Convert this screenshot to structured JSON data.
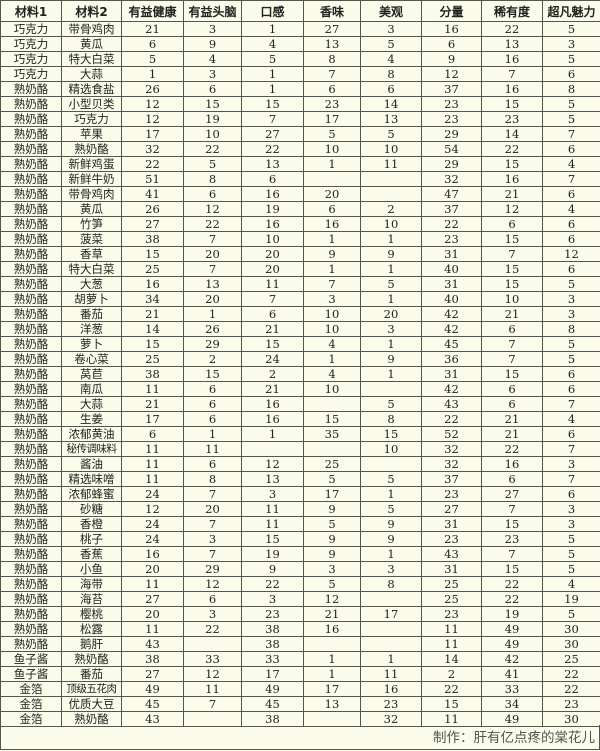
{
  "headers": [
    "材料1",
    "材料2",
    "有益健康",
    "有益头脑",
    "口感",
    "香味",
    "美观",
    "分量",
    "稀有度",
    "超凡魅力"
  ],
  "rows": [
    [
      "巧克力",
      "带骨鸡肉",
      "21",
      "3",
      "1",
      "27",
      "3",
      "16",
      "22",
      "5"
    ],
    [
      "巧克力",
      "黄瓜",
      "6",
      "9",
      "4",
      "13",
      "5",
      "6",
      "13",
      "3"
    ],
    [
      "巧克力",
      "特大白菜",
      "5",
      "4",
      "5",
      "8",
      "4",
      "9",
      "16",
      "5"
    ],
    [
      "巧克力",
      "大蒜",
      "1",
      "3",
      "1",
      "7",
      "8",
      "12",
      "7",
      "6"
    ],
    [
      "熟奶酪",
      "精选食盐",
      "26",
      "6",
      "1",
      "6",
      "6",
      "37",
      "16",
      "8"
    ],
    [
      "熟奶酪",
      "小型贝类",
      "12",
      "15",
      "15",
      "23",
      "14",
      "23",
      "15",
      "5"
    ],
    [
      "熟奶酪",
      "巧克力",
      "12",
      "19",
      "7",
      "17",
      "13",
      "23",
      "23",
      "5"
    ],
    [
      "熟奶酪",
      "苹果",
      "17",
      "10",
      "27",
      "5",
      "5",
      "29",
      "14",
      "7"
    ],
    [
      "熟奶酪",
      "熟奶酪",
      "32",
      "22",
      "22",
      "10",
      "10",
      "54",
      "22",
      "6"
    ],
    [
      "熟奶酪",
      "新鲜鸡蛋",
      "22",
      "5",
      "13",
      "1",
      "11",
      "29",
      "15",
      "4"
    ],
    [
      "熟奶酪",
      "新鲜牛奶",
      "51",
      "8",
      "6",
      "",
      "",
      "32",
      "16",
      "7"
    ],
    [
      "熟奶酪",
      "带骨鸡肉",
      "41",
      "6",
      "16",
      "20",
      "",
      "47",
      "21",
      "6"
    ],
    [
      "熟奶酪",
      "黄瓜",
      "26",
      "12",
      "19",
      "6",
      "2",
      "37",
      "12",
      "4"
    ],
    [
      "熟奶酪",
      "竹笋",
      "27",
      "22",
      "16",
      "16",
      "10",
      "22",
      "6",
      "6"
    ],
    [
      "熟奶酪",
      "菠菜",
      "38",
      "7",
      "10",
      "1",
      "1",
      "23",
      "15",
      "6"
    ],
    [
      "熟奶酪",
      "香草",
      "15",
      "20",
      "20",
      "9",
      "9",
      "31",
      "7",
      "12"
    ],
    [
      "熟奶酪",
      "特大白菜",
      "25",
      "7",
      "20",
      "1",
      "1",
      "40",
      "15",
      "6"
    ],
    [
      "熟奶酪",
      "大葱",
      "16",
      "13",
      "11",
      "7",
      "5",
      "31",
      "15",
      "5"
    ],
    [
      "熟奶酪",
      "胡萝卜",
      "34",
      "20",
      "7",
      "3",
      "1",
      "40",
      "10",
      "3"
    ],
    [
      "熟奶酪",
      "番茄",
      "21",
      "1",
      "6",
      "10",
      "20",
      "42",
      "21",
      "3"
    ],
    [
      "熟奶酪",
      "洋葱",
      "14",
      "26",
      "21",
      "10",
      "3",
      "42",
      "6",
      "8"
    ],
    [
      "熟奶酪",
      "萝卜",
      "15",
      "29",
      "15",
      "4",
      "1",
      "45",
      "7",
      "5"
    ],
    [
      "熟奶酪",
      "卷心菜",
      "25",
      "2",
      "24",
      "1",
      "9",
      "36",
      "7",
      "5"
    ],
    [
      "熟奶酪",
      "莴苣",
      "38",
      "15",
      "2",
      "4",
      "1",
      "31",
      "15",
      "6"
    ],
    [
      "熟奶酪",
      "南瓜",
      "11",
      "6",
      "21",
      "10",
      "",
      "42",
      "6",
      "6"
    ],
    [
      "熟奶酪",
      "大蒜",
      "21",
      "6",
      "16",
      "",
      "5",
      "43",
      "6",
      "7"
    ],
    [
      "熟奶酪",
      "生姜",
      "17",
      "6",
      "16",
      "15",
      "8",
      "22",
      "21",
      "4"
    ],
    [
      "熟奶酪",
      "浓郁黄油",
      "6",
      "1",
      "1",
      "35",
      "15",
      "52",
      "21",
      "6"
    ],
    [
      "熟奶酪",
      "秘传调味料",
      "11",
      "11",
      "",
      "",
      "10",
      "32",
      "22",
      "7"
    ],
    [
      "熟奶酪",
      "酱油",
      "11",
      "6",
      "12",
      "25",
      "",
      "32",
      "16",
      "3"
    ],
    [
      "熟奶酪",
      "精选味噌",
      "11",
      "8",
      "13",
      "5",
      "5",
      "37",
      "6",
      "7"
    ],
    [
      "熟奶酪",
      "浓郁蜂蜜",
      "24",
      "7",
      "3",
      "17",
      "1",
      "23",
      "27",
      "6"
    ],
    [
      "熟奶酪",
      "砂糖",
      "12",
      "20",
      "11",
      "9",
      "5",
      "27",
      "7",
      "3"
    ],
    [
      "熟奶酪",
      "香橙",
      "24",
      "7",
      "11",
      "5",
      "9",
      "31",
      "15",
      "3"
    ],
    [
      "熟奶酪",
      "桃子",
      "24",
      "3",
      "15",
      "9",
      "9",
      "23",
      "23",
      "5"
    ],
    [
      "熟奶酪",
      "香蕉",
      "16",
      "7",
      "19",
      "9",
      "1",
      "43",
      "7",
      "5"
    ],
    [
      "熟奶酪",
      "小鱼",
      "20",
      "29",
      "9",
      "3",
      "3",
      "31",
      "15",
      "5"
    ],
    [
      "熟奶酪",
      "海带",
      "11",
      "12",
      "22",
      "5",
      "8",
      "25",
      "22",
      "4"
    ],
    [
      "熟奶酪",
      "海苔",
      "27",
      "6",
      "3",
      "12",
      "",
      "25",
      "22",
      "19"
    ],
    [
      "熟奶酪",
      "樱桃",
      "20",
      "3",
      "23",
      "21",
      "17",
      "23",
      "19",
      "5"
    ],
    [
      "熟奶酪",
      "松露",
      "11",
      "22",
      "38",
      "16",
      "",
      "11",
      "49",
      "30"
    ],
    [
      "熟奶酪",
      "鹅肝",
      "43",
      "",
      "38",
      "",
      "",
      "11",
      "49",
      "30"
    ],
    [
      "鱼子酱",
      "熟奶酪",
      "38",
      "33",
      "33",
      "1",
      "1",
      "14",
      "42",
      "25"
    ],
    [
      "鱼子酱",
      "番茄",
      "27",
      "12",
      "17",
      "1",
      "11",
      "2",
      "41",
      "22"
    ],
    [
      "金箔",
      "顶级五花肉",
      "49",
      "11",
      "49",
      "17",
      "16",
      "22",
      "33",
      "22"
    ],
    [
      "金箔",
      "优质大豆",
      "45",
      "7",
      "45",
      "13",
      "23",
      "15",
      "34",
      "23"
    ],
    [
      "金箔",
      "熟奶酪",
      "43",
      "",
      "38",
      "",
      "32",
      "11",
      "49",
      "30"
    ]
  ],
  "footer": {
    "credit": "制作：肝有亿点疼的棠花儿"
  }
}
